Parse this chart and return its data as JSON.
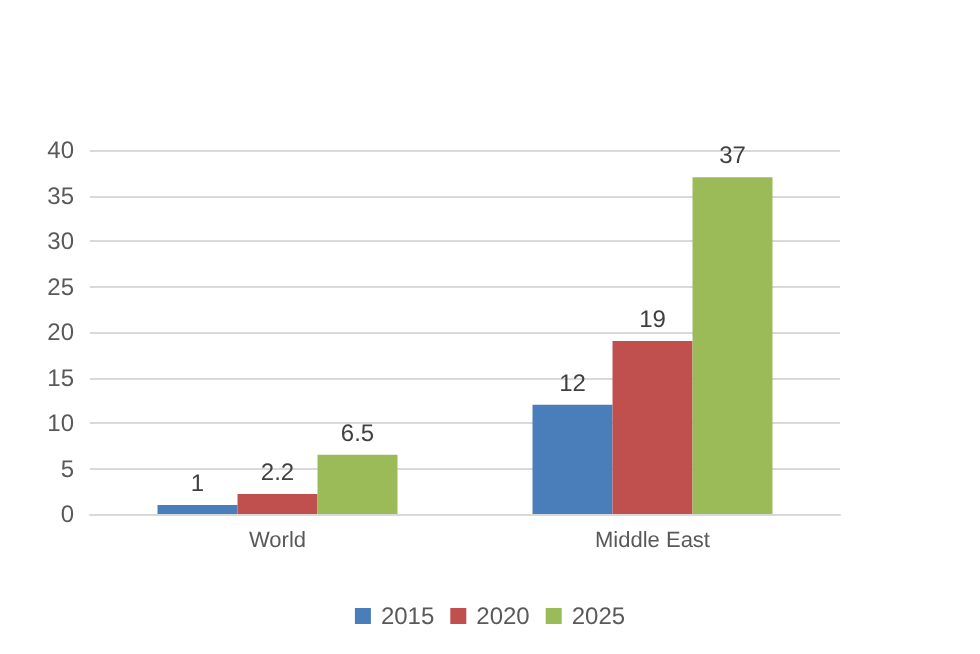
{
  "chart_data": {
    "type": "bar",
    "categories": [
      "World",
      "Middle East"
    ],
    "series": [
      {
        "name": "2015",
        "color": "#4a7ebb",
        "values": [
          1,
          12
        ]
      },
      {
        "name": "2020",
        "color": "#c0504d",
        "values": [
          2.2,
          19
        ]
      },
      {
        "name": "2025",
        "color": "#9bbb59",
        "values": [
          6.5,
          37
        ]
      }
    ],
    "ylim": [
      0,
      40
    ],
    "yticks": [
      0,
      5,
      10,
      15,
      20,
      25,
      30,
      35,
      40
    ],
    "grid": "y",
    "legend": "bottom",
    "data_labels": true
  }
}
